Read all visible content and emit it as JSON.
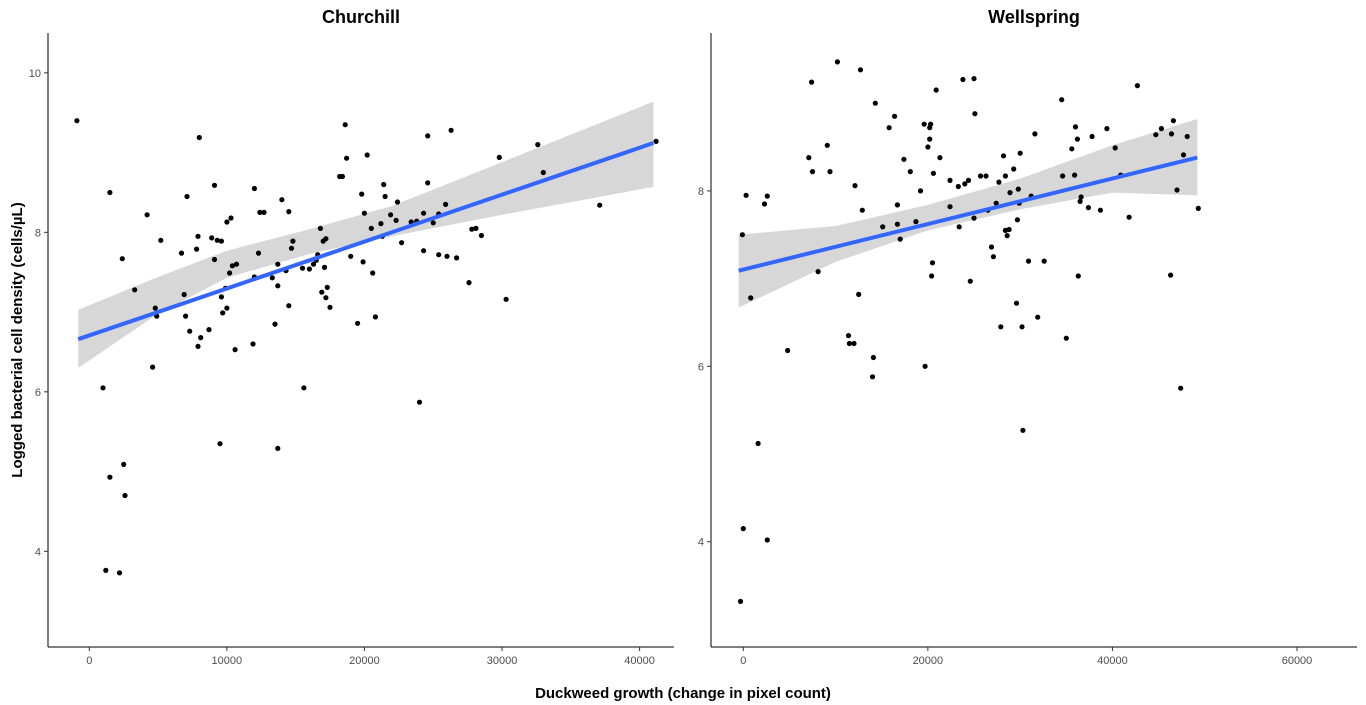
{
  "chart_data": [
    {
      "type": "scatter",
      "title": "Churchill",
      "xlim": [
        -3000,
        42500
      ],
      "ylim": [
        2.8,
        10.5
      ],
      "xticks": [
        0,
        10000,
        20000,
        30000,
        40000
      ],
      "yticks": [
        4,
        6,
        8,
        10
      ],
      "fit": {
        "x0": -800,
        "y0": 6.66,
        "x1": 41000,
        "y1": 9.12,
        "band": [
          [
            -800,
            6.3,
            7.03
          ],
          [
            5000,
            6.98,
            7.44
          ],
          [
            10000,
            7.43,
            7.77
          ],
          [
            16000,
            7.73,
            8.04
          ],
          [
            22000,
            7.95,
            8.33
          ],
          [
            30000,
            8.22,
            8.88
          ],
          [
            41000,
            8.57,
            9.64
          ]
        ]
      },
      "points": [
        [
          -900,
          9.4
        ],
        [
          1000,
          6.05
        ],
        [
          1200,
          3.76
        ],
        [
          1500,
          4.93
        ],
        [
          1500,
          8.5
        ],
        [
          2200,
          3.73
        ],
        [
          2400,
          7.67
        ],
        [
          2500,
          5.09
        ],
        [
          2600,
          4.7
        ],
        [
          3300,
          7.28
        ],
        [
          4200,
          8.22
        ],
        [
          4600,
          6.31
        ],
        [
          4800,
          7.05
        ],
        [
          4900,
          6.95
        ],
        [
          5200,
          7.9
        ],
        [
          6700,
          7.74
        ],
        [
          6900,
          7.22
        ],
        [
          7000,
          6.95
        ],
        [
          7100,
          8.45
        ],
        [
          7300,
          6.76
        ],
        [
          7800,
          7.79
        ],
        [
          7900,
          6.57
        ],
        [
          7900,
          7.95
        ],
        [
          8000,
          9.19
        ],
        [
          8100,
          6.68
        ],
        [
          8700,
          6.78
        ],
        [
          8900,
          7.93
        ],
        [
          9100,
          7.66
        ],
        [
          9100,
          8.59
        ],
        [
          9300,
          7.9
        ],
        [
          9500,
          5.35
        ],
        [
          9600,
          7.89
        ],
        [
          9600,
          7.19
        ],
        [
          9700,
          6.99
        ],
        [
          9900,
          7.3
        ],
        [
          10000,
          8.13
        ],
        [
          10000,
          7.05
        ],
        [
          10200,
          7.49
        ],
        [
          10300,
          8.18
        ],
        [
          10400,
          7.58
        ],
        [
          10600,
          6.53
        ],
        [
          10700,
          7.6
        ],
        [
          11900,
          6.6
        ],
        [
          12000,
          8.55
        ],
        [
          12000,
          7.44
        ],
        [
          12300,
          7.74
        ],
        [
          12400,
          8.25
        ],
        [
          12700,
          8.25
        ],
        [
          13300,
          7.43
        ],
        [
          13500,
          6.85
        ],
        [
          13700,
          7.6
        ],
        [
          13700,
          7.33
        ],
        [
          13700,
          5.29
        ],
        [
          14000,
          8.41
        ],
        [
          14300,
          7.52
        ],
        [
          14500,
          7.08
        ],
        [
          14500,
          8.26
        ],
        [
          14700,
          7.8
        ],
        [
          14800,
          7.89
        ],
        [
          15500,
          7.55
        ],
        [
          15600,
          6.05
        ],
        [
          16000,
          7.54
        ],
        [
          16300,
          7.6
        ],
        [
          16500,
          7.65
        ],
        [
          16600,
          7.72
        ],
        [
          16800,
          8.05
        ],
        [
          16900,
          7.25
        ],
        [
          17000,
          7.89
        ],
        [
          17100,
          7.56
        ],
        [
          17200,
          7.18
        ],
        [
          17200,
          7.92
        ],
        [
          17300,
          7.31
        ],
        [
          17500,
          7.06
        ],
        [
          18200,
          8.7
        ],
        [
          18400,
          8.7
        ],
        [
          18600,
          9.35
        ],
        [
          18700,
          8.93
        ],
        [
          19000,
          7.7
        ],
        [
          19500,
          6.86
        ],
        [
          19800,
          8.48
        ],
        [
          19900,
          7.63
        ],
        [
          20000,
          8.24
        ],
        [
          20200,
          8.97
        ],
        [
          20500,
          8.05
        ],
        [
          20600,
          7.49
        ],
        [
          20800,
          6.94
        ],
        [
          21200,
          8.11
        ],
        [
          21300,
          7.95
        ],
        [
          21400,
          8.6
        ],
        [
          21500,
          8.45
        ],
        [
          21900,
          8.22
        ],
        [
          22300,
          8.15
        ],
        [
          22400,
          8.38
        ],
        [
          22700,
          7.87
        ],
        [
          23400,
          8.13
        ],
        [
          23800,
          8.14
        ],
        [
          24000,
          5.87
        ],
        [
          24300,
          7.77
        ],
        [
          24300,
          8.24
        ],
        [
          24600,
          8.62
        ],
        [
          24600,
          9.21
        ],
        [
          25000,
          8.12
        ],
        [
          25400,
          7.72
        ],
        [
          25400,
          8.23
        ],
        [
          25900,
          8.35
        ],
        [
          26000,
          7.7
        ],
        [
          26300,
          9.28
        ],
        [
          26700,
          7.68
        ],
        [
          27600,
          7.37
        ],
        [
          27800,
          8.04
        ],
        [
          28100,
          8.05
        ],
        [
          28500,
          7.96
        ],
        [
          29800,
          8.94
        ],
        [
          30300,
          7.16
        ],
        [
          32600,
          9.1
        ],
        [
          33000,
          8.75
        ],
        [
          37100,
          8.34
        ],
        [
          41200,
          9.14
        ]
      ]
    },
    {
      "type": "scatter",
      "title": "Wellspring",
      "xlim": [
        -3500,
        66500
      ],
      "ylim": [
        2.8,
        9.8
      ],
      "xticks": [
        0,
        20000,
        40000,
        60000
      ],
      "yticks": [
        4,
        6,
        8
      ],
      "fit": {
        "x0": -500,
        "y0": 7.09,
        "x1": 49200,
        "y1": 8.38,
        "band": [
          [
            -500,
            6.67,
            7.5
          ],
          [
            10000,
            7.19,
            7.6
          ],
          [
            20000,
            7.55,
            7.84
          ],
          [
            30000,
            7.79,
            8.14
          ],
          [
            40000,
            7.98,
            8.52
          ],
          [
            49200,
            7.95,
            8.82
          ]
        ]
      },
      "points": [
        [
          -300,
          3.32
        ],
        [
          -100,
          7.5
        ],
        [
          0,
          4.15
        ],
        [
          300,
          7.95
        ],
        [
          800,
          6.78
        ],
        [
          1600,
          5.12
        ],
        [
          2300,
          7.85
        ],
        [
          2600,
          7.94
        ],
        [
          2600,
          4.02
        ],
        [
          4800,
          6.18
        ],
        [
          7100,
          8.38
        ],
        [
          7400,
          9.24
        ],
        [
          7500,
          8.22
        ],
        [
          8100,
          7.08
        ],
        [
          9100,
          8.52
        ],
        [
          9400,
          8.22
        ],
        [
          10200,
          9.47
        ],
        [
          11400,
          6.35
        ],
        [
          11500,
          6.26
        ],
        [
          12000,
          6.26
        ],
        [
          12100,
          8.06
        ],
        [
          12500,
          6.82
        ],
        [
          12700,
          9.38
        ],
        [
          12900,
          7.78
        ],
        [
          14000,
          5.88
        ],
        [
          14100,
          6.1
        ],
        [
          14300,
          9.0
        ],
        [
          15100,
          7.59
        ],
        [
          15800,
          8.72
        ],
        [
          16400,
          8.85
        ],
        [
          16700,
          7.62
        ],
        [
          16700,
          7.84
        ],
        [
          17000,
          7.45
        ],
        [
          17400,
          8.36
        ],
        [
          18100,
          8.22
        ],
        [
          18700,
          7.65
        ],
        [
          19200,
          8.0
        ],
        [
          19600,
          8.76
        ],
        [
          19700,
          6.0
        ],
        [
          20000,
          8.5
        ],
        [
          20200,
          8.72
        ],
        [
          20200,
          8.59
        ],
        [
          20300,
          8.76
        ],
        [
          20400,
          7.03
        ],
        [
          20500,
          7.18
        ],
        [
          20600,
          8.2
        ],
        [
          20900,
          9.15
        ],
        [
          21300,
          8.38
        ],
        [
          22400,
          7.82
        ],
        [
          22400,
          8.12
        ],
        [
          23300,
          8.05
        ],
        [
          23400,
          7.59
        ],
        [
          23800,
          9.27
        ],
        [
          24000,
          8.08
        ],
        [
          24400,
          8.12
        ],
        [
          24600,
          6.97
        ],
        [
          25000,
          9.28
        ],
        [
          25000,
          7.69
        ],
        [
          25100,
          8.88
        ],
        [
          25700,
          8.17
        ],
        [
          26300,
          8.17
        ],
        [
          26500,
          7.78
        ],
        [
          26900,
          7.36
        ],
        [
          27100,
          7.25
        ],
        [
          27400,
          7.86
        ],
        [
          27700,
          8.1
        ],
        [
          27900,
          6.45
        ],
        [
          28200,
          8.4
        ],
        [
          28400,
          7.55
        ],
        [
          28400,
          8.17
        ],
        [
          28600,
          7.49
        ],
        [
          28800,
          7.56
        ],
        [
          28900,
          7.98
        ],
        [
          29300,
          8.25
        ],
        [
          29600,
          6.72
        ],
        [
          29700,
          7.67
        ],
        [
          29800,
          8.02
        ],
        [
          29900,
          7.86
        ],
        [
          30000,
          8.43
        ],
        [
          30200,
          6.45
        ],
        [
          30300,
          5.27
        ],
        [
          30900,
          7.2
        ],
        [
          31200,
          7.94
        ],
        [
          31600,
          8.65
        ],
        [
          31900,
          6.56
        ],
        [
          32600,
          7.2
        ],
        [
          34500,
          9.04
        ],
        [
          34600,
          8.17
        ],
        [
          35000,
          6.32
        ],
        [
          35600,
          8.48
        ],
        [
          35900,
          8.18
        ],
        [
          36000,
          8.73
        ],
        [
          36200,
          8.59
        ],
        [
          36300,
          7.03
        ],
        [
          36500,
          7.88
        ],
        [
          36600,
          7.93
        ],
        [
          37400,
          7.81
        ],
        [
          37800,
          8.62
        ],
        [
          38700,
          7.78
        ],
        [
          39400,
          8.71
        ],
        [
          40300,
          8.49
        ],
        [
          40900,
          8.18
        ],
        [
          41800,
          7.7
        ],
        [
          42700,
          9.2
        ],
        [
          44700,
          8.64
        ],
        [
          45300,
          8.71
        ],
        [
          46300,
          7.04
        ],
        [
          46400,
          8.65
        ],
        [
          46600,
          8.8
        ],
        [
          47000,
          8.01
        ],
        [
          47400,
          5.75
        ],
        [
          47700,
          8.41
        ],
        [
          48100,
          8.62
        ],
        [
          49300,
          7.8
        ]
      ]
    }
  ],
  "labels": {
    "ylabel": "Logged bacterial cell density (cells/µL)",
    "xlabel": "Duckweed growth (change in pixel count)"
  }
}
